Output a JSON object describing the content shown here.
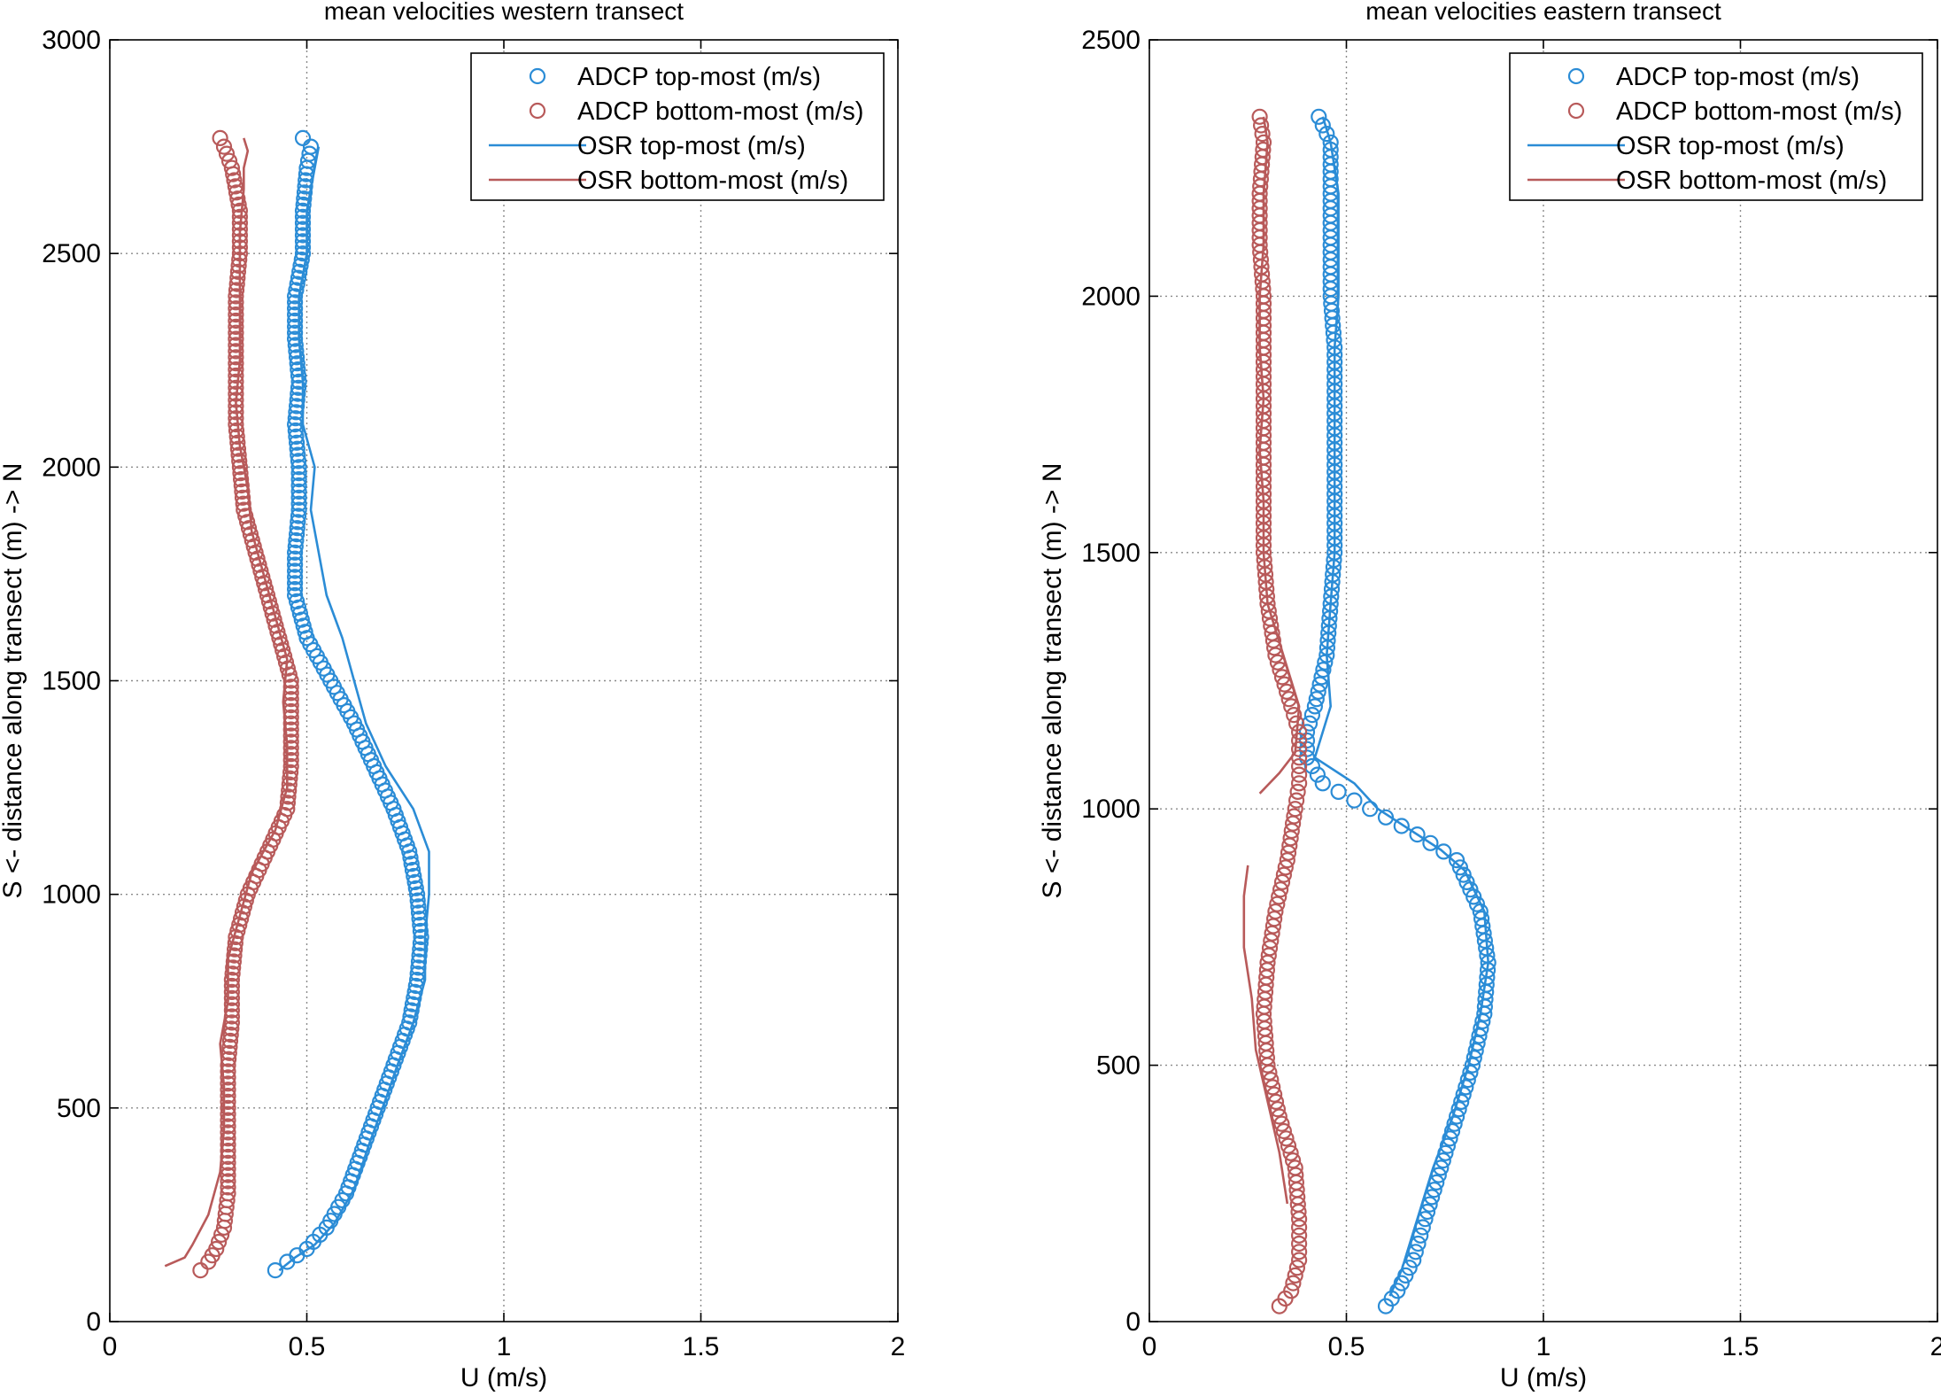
{
  "figure": {
    "background": "#ffffff"
  },
  "colors": {
    "top": "#2b8cd6",
    "bottom": "#b85a5a",
    "grid": "#8a8a8a",
    "axis": "#000000"
  },
  "chart_data": [
    {
      "type": "line",
      "title": "mean velocities western transect",
      "xlabel": "U (m/s)",
      "ylabel": "S <- distance along transect (m) -> N",
      "xlim": [
        0,
        2
      ],
      "ylim": [
        0,
        3000
      ],
      "xticks": [
        0,
        0.5,
        1,
        1.5,
        2
      ],
      "xtick_labels": [
        "0",
        "0.5",
        "1",
        "1.5",
        "2"
      ],
      "yticks": [
        0,
        500,
        1000,
        1500,
        2000,
        2500,
        3000
      ],
      "ytick_labels": [
        "0",
        "500",
        "1000",
        "1500",
        "2000",
        "2500",
        "3000"
      ],
      "grid": true,
      "legend_position": "top-right",
      "series": [
        {
          "name": "ADCP top-most (m/s)",
          "kind": "markers",
          "color_key": "top",
          "points": [
            [
              0.42,
              120
            ],
            [
              0.45,
              140
            ],
            [
              0.5,
              170
            ],
            [
              0.55,
              220
            ],
            [
              0.6,
              300
            ],
            [
              0.64,
              400
            ],
            [
              0.68,
              500
            ],
            [
              0.72,
              600
            ],
            [
              0.76,
              700
            ],
            [
              0.78,
              800
            ],
            [
              0.79,
              900
            ],
            [
              0.78,
              1000
            ],
            [
              0.76,
              1100
            ],
            [
              0.72,
              1200
            ],
            [
              0.67,
              1300
            ],
            [
              0.62,
              1400
            ],
            [
              0.56,
              1500
            ],
            [
              0.5,
              1600
            ],
            [
              0.47,
              1700
            ],
            [
              0.47,
              1800
            ],
            [
              0.48,
              1900
            ],
            [
              0.48,
              2000
            ],
            [
              0.47,
              2100
            ],
            [
              0.48,
              2200
            ],
            [
              0.47,
              2300
            ],
            [
              0.47,
              2400
            ],
            [
              0.49,
              2500
            ],
            [
              0.49,
              2600
            ],
            [
              0.5,
              2700
            ],
            [
              0.51,
              2750
            ],
            [
              0.49,
              2770
            ]
          ]
        },
        {
          "name": "ADCP bottom-most (m/s)",
          "kind": "markers",
          "color_key": "bottom",
          "points": [
            [
              0.23,
              120
            ],
            [
              0.25,
              140
            ],
            [
              0.27,
              170
            ],
            [
              0.29,
              220
            ],
            [
              0.3,
              300
            ],
            [
              0.3,
              400
            ],
            [
              0.3,
              500
            ],
            [
              0.3,
              600
            ],
            [
              0.31,
              700
            ],
            [
              0.31,
              800
            ],
            [
              0.32,
              900
            ],
            [
              0.35,
              1000
            ],
            [
              0.4,
              1100
            ],
            [
              0.45,
              1200
            ],
            [
              0.46,
              1300
            ],
            [
              0.46,
              1400
            ],
            [
              0.46,
              1500
            ],
            [
              0.43,
              1600
            ],
            [
              0.4,
              1700
            ],
            [
              0.37,
              1800
            ],
            [
              0.34,
              1900
            ],
            [
              0.33,
              2000
            ],
            [
              0.32,
              2100
            ],
            [
              0.32,
              2200
            ],
            [
              0.32,
              2300
            ],
            [
              0.32,
              2400
            ],
            [
              0.33,
              2500
            ],
            [
              0.33,
              2600
            ],
            [
              0.31,
              2700
            ],
            [
              0.29,
              2750
            ],
            [
              0.28,
              2770
            ]
          ]
        },
        {
          "name": "OSR top-most (m/s)",
          "kind": "line",
          "color_key": "top",
          "points": [
            [
              0.43,
              120
            ],
            [
              0.47,
              150
            ],
            [
              0.52,
              180
            ],
            [
              0.57,
              230
            ],
            [
              0.62,
              310
            ],
            [
              0.66,
              420
            ],
            [
              0.7,
              520
            ],
            [
              0.73,
              600
            ],
            [
              0.77,
              700
            ],
            [
              0.8,
              800
            ],
            [
              0.8,
              900
            ],
            [
              0.81,
              1000
            ],
            [
              0.81,
              1100
            ],
            [
              0.77,
              1200
            ],
            [
              0.7,
              1300
            ],
            [
              0.65,
              1400
            ],
            [
              0.62,
              1500
            ],
            [
              0.59,
              1600
            ],
            [
              0.55,
              1700
            ],
            [
              0.53,
              1800
            ],
            [
              0.51,
              1900
            ],
            [
              0.52,
              2000
            ],
            [
              0.49,
              2100
            ],
            [
              0.49,
              2200
            ],
            [
              0.48,
              2300
            ],
            [
              0.48,
              2400
            ],
            [
              0.5,
              2500
            ],
            [
              0.5,
              2600
            ],
            [
              0.52,
              2700
            ],
            [
              0.53,
              2750
            ]
          ]
        },
        {
          "name": "OSR bottom-most (m/s)",
          "kind": "line",
          "color_key": "bottom",
          "points": [
            [
              0.14,
              130
            ],
            [
              0.19,
              150
            ],
            [
              0.21,
              180
            ],
            [
              0.25,
              250
            ],
            [
              0.28,
              350
            ],
            [
              0.29,
              450
            ],
            [
              0.29,
              550
            ],
            [
              0.28,
              650
            ],
            [
              0.3,
              750
            ],
            [
              0.3,
              850
            ],
            [
              0.33,
              950
            ],
            [
              0.36,
              1050
            ],
            [
              0.42,
              1150
            ],
            [
              0.45,
              1250
            ],
            [
              0.45,
              1350
            ],
            [
              0.44,
              1450
            ],
            [
              0.45,
              1550
            ],
            [
              0.42,
              1650
            ],
            [
              0.39,
              1750
            ],
            [
              0.36,
              1850
            ],
            [
              0.35,
              1950
            ],
            [
              0.33,
              2050
            ],
            [
              0.32,
              2150
            ],
            [
              0.33,
              2250
            ],
            [
              0.33,
              2350
            ],
            [
              0.33,
              2450
            ],
            [
              0.33,
              2550
            ],
            [
              0.34,
              2650
            ],
            [
              0.34,
              2700
            ],
            [
              0.35,
              2740
            ],
            [
              0.34,
              2770
            ]
          ]
        }
      ]
    },
    {
      "type": "line",
      "title": "mean velocities eastern transect",
      "xlabel": "U (m/s)",
      "ylabel": "S <- distance along transect (m) -> N",
      "xlim": [
        0,
        2
      ],
      "ylim": [
        0,
        2500
      ],
      "xticks": [
        0,
        0.5,
        1,
        1.5,
        2
      ],
      "xtick_labels": [
        "0",
        "0.5",
        "1",
        "1.5",
        "2"
      ],
      "yticks": [
        0,
        500,
        1000,
        1500,
        2000,
        2500
      ],
      "ytick_labels": [
        "0",
        "500",
        "1000",
        "1500",
        "2000",
        "2500"
      ],
      "grid": true,
      "legend_position": "top-right",
      "series": [
        {
          "name": "ADCP top-most (m/s)",
          "kind": "markers",
          "color_key": "top",
          "points": [
            [
              0.6,
              30
            ],
            [
              0.63,
              60
            ],
            [
              0.67,
              120
            ],
            [
              0.7,
              200
            ],
            [
              0.74,
              300
            ],
            [
              0.78,
              400
            ],
            [
              0.82,
              500
            ],
            [
              0.85,
              600
            ],
            [
              0.86,
              700
            ],
            [
              0.84,
              800
            ],
            [
              0.78,
              900
            ],
            [
              0.68,
              950
            ],
            [
              0.56,
              1000
            ],
            [
              0.44,
              1050
            ],
            [
              0.4,
              1100
            ],
            [
              0.4,
              1150
            ],
            [
              0.42,
              1200
            ],
            [
              0.45,
              1300
            ],
            [
              0.46,
              1400
            ],
            [
              0.47,
              1500
            ],
            [
              0.47,
              1600
            ],
            [
              0.47,
              1700
            ],
            [
              0.47,
              1800
            ],
            [
              0.47,
              1900
            ],
            [
              0.46,
              2000
            ],
            [
              0.46,
              2100
            ],
            [
              0.46,
              2200
            ],
            [
              0.46,
              2300
            ],
            [
              0.43,
              2350
            ]
          ]
        },
        {
          "name": "ADCP bottom-most (m/s)",
          "kind": "markers",
          "color_key": "bottom",
          "points": [
            [
              0.33,
              30
            ],
            [
              0.36,
              60
            ],
            [
              0.38,
              120
            ],
            [
              0.38,
              200
            ],
            [
              0.37,
              300
            ],
            [
              0.33,
              400
            ],
            [
              0.3,
              500
            ],
            [
              0.29,
              600
            ],
            [
              0.3,
              700
            ],
            [
              0.32,
              800
            ],
            [
              0.35,
              900
            ],
            [
              0.37,
              1000
            ],
            [
              0.38,
              1050
            ],
            [
              0.38,
              1100
            ],
            [
              0.38,
              1150
            ],
            [
              0.36,
              1200
            ],
            [
              0.32,
              1300
            ],
            [
              0.3,
              1400
            ],
            [
              0.29,
              1500
            ],
            [
              0.29,
              1600
            ],
            [
              0.29,
              1700
            ],
            [
              0.29,
              1800
            ],
            [
              0.29,
              1900
            ],
            [
              0.29,
              2000
            ],
            [
              0.28,
              2100
            ],
            [
              0.28,
              2200
            ],
            [
              0.29,
              2300
            ],
            [
              0.28,
              2350
            ]
          ]
        },
        {
          "name": "OSR top-most (m/s)",
          "kind": "line",
          "color_key": "top",
          "points": [
            [
              0.61,
              50
            ],
            [
              0.64,
              100
            ],
            [
              0.68,
              200
            ],
            [
              0.72,
              300
            ],
            [
              0.77,
              400
            ],
            [
              0.81,
              500
            ],
            [
              0.84,
              600
            ],
            [
              0.86,
              700
            ],
            [
              0.85,
              800
            ],
            [
              0.8,
              880
            ],
            [
              0.74,
              920
            ],
            [
              0.58,
              1000
            ],
            [
              0.52,
              1050
            ],
            [
              0.42,
              1100
            ],
            [
              0.44,
              1150
            ],
            [
              0.46,
              1200
            ],
            [
              0.45,
              1300
            ],
            [
              0.46,
              1400
            ],
            [
              0.47,
              1500
            ],
            [
              0.47,
              1600
            ],
            [
              0.47,
              1700
            ],
            [
              0.47,
              1800
            ],
            [
              0.47,
              1900
            ],
            [
              0.48,
              2000
            ],
            [
              0.48,
              2100
            ],
            [
              0.48,
              2200
            ],
            [
              0.46,
              2300
            ],
            [
              0.44,
              2350
            ]
          ]
        },
        {
          "name": "OSR bottom-most (m/s)",
          "kind": "line",
          "color_key": "bottom",
          "points": [
            [
              0.35,
              230
            ],
            [
              0.33,
              330
            ],
            [
              0.3,
              430
            ],
            [
              0.27,
              530
            ],
            [
              0.26,
              630
            ],
            [
              0.24,
              730
            ],
            [
              0.24,
              830
            ],
            [
              0.25,
              890
            ]
          ]
        },
        {
          "name": "",
          "kind": "line",
          "color_key": "bottom",
          "points": [
            [
              0.28,
              1030
            ],
            [
              0.33,
              1070
            ],
            [
              0.37,
              1110
            ],
            [
              0.38,
              1200
            ],
            [
              0.34,
              1300
            ],
            [
              0.3,
              1400
            ],
            [
              0.29,
              1500
            ],
            [
              0.29,
              1600
            ],
            [
              0.28,
              1700
            ],
            [
              0.29,
              1800
            ],
            [
              0.28,
              1900
            ],
            [
              0.28,
              2000
            ],
            [
              0.29,
              2100
            ],
            [
              0.29,
              2200
            ],
            [
              0.3,
              2300
            ],
            [
              0.29,
              2350
            ]
          ]
        }
      ]
    }
  ]
}
